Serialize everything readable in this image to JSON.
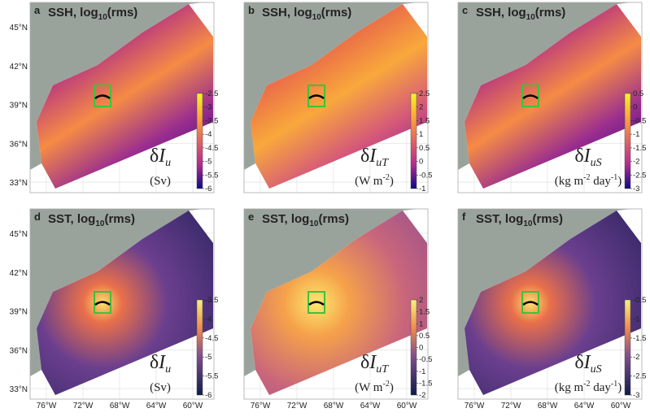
{
  "panels": [
    {
      "letter": "a",
      "title": {
        "pre": "SSH, log",
        "sub": "10",
        "post": "(rms)"
      },
      "variable": {
        "delta": "δ",
        "base": "I",
        "sub": "u"
      },
      "units": [
        {
          "text": "(Sv)"
        }
      ],
      "colorbar": {
        "lim": [
          -6,
          -2.5
        ],
        "ticks": [
          -2.5,
          -3,
          -3.5,
          -4,
          -4.5,
          -5,
          -5.5,
          -6
        ]
      }
    },
    {
      "letter": "b",
      "title": {
        "pre": "SSH, log",
        "sub": "10",
        "post": "(rms)"
      },
      "variable": {
        "delta": "δ",
        "base": "I",
        "sub": "uT"
      },
      "units": [
        {
          "text": "(W m"
        },
        {
          "sup": "-2"
        },
        {
          "text": ")"
        }
      ],
      "colorbar": {
        "lim": [
          -1,
          2.5
        ],
        "ticks": [
          2.5,
          2,
          1.5,
          1,
          0.5,
          0,
          -0.5,
          -1
        ]
      }
    },
    {
      "letter": "c",
      "title": {
        "pre": "SSH, log",
        "sub": "10",
        "post": "(rms)"
      },
      "variable": {
        "delta": "δ",
        "base": "I",
        "sub": "uS"
      },
      "units": [
        {
          "text": "(kg m"
        },
        {
          "sup": "-2"
        },
        {
          "text": " day"
        },
        {
          "sup": "-1"
        },
        {
          "text": ")"
        }
      ],
      "colorbar": {
        "lim": [
          -3,
          0.5
        ],
        "ticks": [
          0.5,
          0,
          -0.5,
          -1,
          -1.5,
          -2,
          -2.5,
          -3
        ]
      }
    },
    {
      "letter": "d",
      "title": {
        "pre": "SST, log",
        "sub": "10",
        "post": "(rms)"
      },
      "variable": {
        "delta": "δ",
        "base": "I",
        "sub": "u"
      },
      "units": [
        {
          "text": "(Sv)"
        }
      ],
      "colorbar": {
        "lim": [
          -6,
          -3.5
        ],
        "ticks": [
          -3.5,
          -4,
          -4.5,
          -5,
          -5.5,
          -6
        ]
      }
    },
    {
      "letter": "e",
      "title": {
        "pre": "SST, log",
        "sub": "10",
        "post": "(rms)"
      },
      "variable": {
        "delta": "δ",
        "base": "I",
        "sub": "uT"
      },
      "units": [
        {
          "text": "(W m"
        },
        {
          "sup": "-2"
        },
        {
          "text": ")"
        }
      ],
      "colorbar": {
        "lim": [
          -2,
          2
        ],
        "ticks": [
          2,
          1.5,
          1,
          0.5,
          0,
          -0.5,
          -1,
          -1.5,
          -2
        ]
      }
    },
    {
      "letter": "f",
      "title": {
        "pre": "SST, log",
        "sub": "10",
        "post": "(rms)"
      },
      "variable": {
        "delta": "δ",
        "base": "I",
        "sub": "uS"
      },
      "units": [
        {
          "text": "(kg m"
        },
        {
          "sup": "-2"
        },
        {
          "text": " day"
        },
        {
          "sup": "-1"
        },
        {
          "text": ")"
        }
      ],
      "colorbar": {
        "lim": [
          -3,
          -0.5
        ],
        "ticks": [
          -0.5,
          -1,
          -1.5,
          -2,
          -2.5,
          -3
        ]
      }
    }
  ],
  "lat_ticks": [
    {
      "value": 45,
      "label": "45°N"
    },
    {
      "value": 42,
      "label": "42°N"
    },
    {
      "value": 39,
      "label": "39°N"
    },
    {
      "value": 36,
      "label": "36°N"
    },
    {
      "value": 33,
      "label": "33°N"
    }
  ],
  "lon_ticks": [
    {
      "value": -76,
      "label": "76°W"
    },
    {
      "value": -72,
      "label": "72°W"
    },
    {
      "value": -68,
      "label": "68°W"
    },
    {
      "value": -64,
      "label": "64°W"
    },
    {
      "value": -60,
      "label": "60°W"
    }
  ]
}
